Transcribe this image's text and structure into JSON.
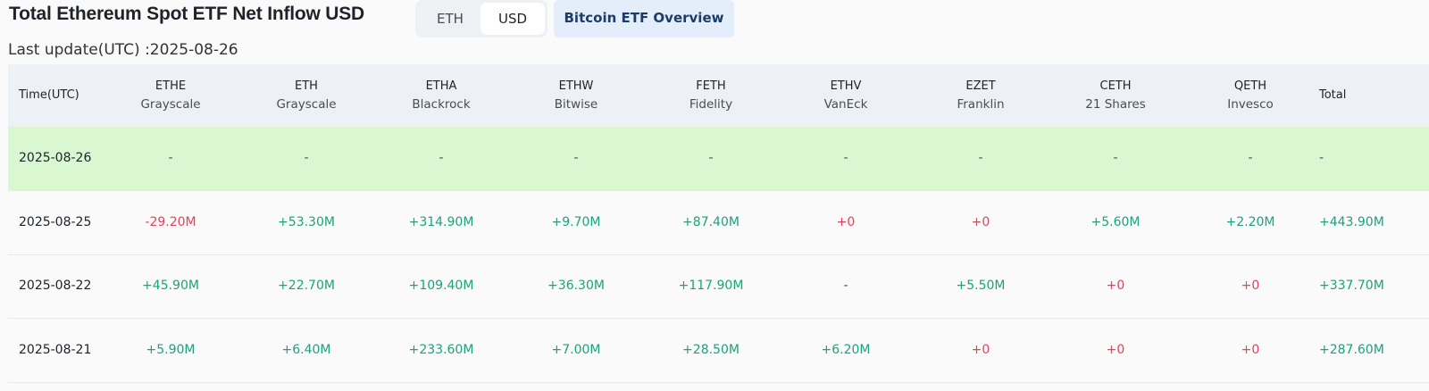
{
  "header": {
    "title": "Total Ethereum Spot ETF Net Inflow USD",
    "toggle": [
      "ETH",
      "USD"
    ],
    "active_toggle": 1,
    "button": "Bitcoin ETF Overview",
    "last_update": "Last update(UTC) :2025-08-26"
  },
  "table": {
    "time_header": "Time(UTC)",
    "funds": [
      {
        "ticker": "ETHE",
        "issuer": "Grayscale"
      },
      {
        "ticker": "ETH",
        "issuer": "Grayscale"
      },
      {
        "ticker": "ETHA",
        "issuer": "Blackrock"
      },
      {
        "ticker": "ETHW",
        "issuer": "Bitwise"
      },
      {
        "ticker": "FETH",
        "issuer": "Fidelity"
      },
      {
        "ticker": "ETHV",
        "issuer": "VanEck"
      },
      {
        "ticker": "EZET",
        "issuer": "Franklin"
      },
      {
        "ticker": "CETH",
        "issuer": "21 Shares"
      },
      {
        "ticker": "QETH",
        "issuer": "Invesco"
      }
    ],
    "total_header": "Total",
    "highlight_row": 0,
    "rows": [
      [
        "2025-08-26",
        "-",
        "-",
        "-",
        "-",
        "-",
        "-",
        "-",
        "-",
        "-",
        "-"
      ],
      [
        "2025-08-25",
        "-29.20M",
        "+53.30M",
        "+314.90M",
        "+9.70M",
        "+87.40M",
        "+0",
        "+0",
        "+5.60M",
        "+2.20M",
        "+443.90M"
      ],
      [
        "2025-08-22",
        "+45.90M",
        "+22.70M",
        "+109.40M",
        "+36.30M",
        "+117.90M",
        "-",
        "+5.50M",
        "+0",
        "+0",
        "+337.70M"
      ],
      [
        "2025-08-21",
        "+5.90M",
        "+6.40M",
        "+233.60M",
        "+7.00M",
        "+28.50M",
        "+6.20M",
        "+0",
        "+0",
        "+0",
        "+287.60M"
      ]
    ]
  }
}
